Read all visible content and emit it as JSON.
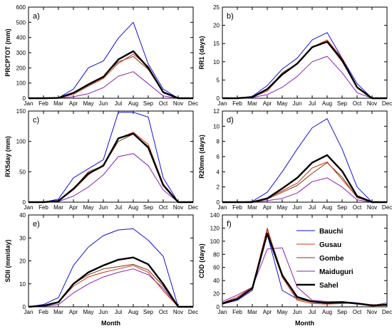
{
  "chart_data": [
    {
      "type": "line",
      "panel_label": "a)",
      "ylabel": "PRCPTOT (mm)",
      "xlabel": "",
      "ylim": [
        0,
        600
      ],
      "yticks": [
        0,
        100,
        200,
        300,
        400,
        500,
        600
      ],
      "x": [
        "Jan",
        "Feb",
        "Mar",
        "Apr",
        "May",
        "Jun",
        "Jul",
        "Aug",
        "Sep",
        "Oct",
        "Nov",
        "Dec"
      ],
      "series": [
        {
          "name": "Bauchi",
          "values": [
            0,
            0,
            3,
            60,
            200,
            245,
            395,
            500,
            225,
            60,
            0,
            0
          ]
        },
        {
          "name": "Gusau",
          "values": [
            0,
            0,
            2,
            25,
            80,
            130,
            230,
            290,
            210,
            35,
            0,
            0
          ]
        },
        {
          "name": "Gombe",
          "values": [
            0,
            0,
            2,
            35,
            95,
            145,
            240,
            275,
            190,
            40,
            0,
            0
          ]
        },
        {
          "name": "Maiduguri",
          "values": [
            0,
            0,
            1,
            10,
            30,
            70,
            145,
            175,
            95,
            15,
            0,
            0
          ]
        },
        {
          "name": "Sahel",
          "values": [
            0,
            0,
            2,
            35,
            90,
            140,
            255,
            310,
            200,
            40,
            0,
            0
          ]
        }
      ]
    },
    {
      "type": "line",
      "panel_label": "b)",
      "ylabel": "RR1 (days)",
      "xlabel": "",
      "ylim": [
        0,
        25
      ],
      "yticks": [
        0,
        5,
        10,
        15,
        20,
        25
      ],
      "x": [
        "Jan",
        "Feb",
        "Mar",
        "Apr",
        "May",
        "Jun",
        "Jul",
        "Aug",
        "Sep",
        "Oct",
        "Nov",
        "Dec"
      ],
      "series": [
        {
          "name": "Bauchi",
          "values": [
            0,
            0,
            0.5,
            3.5,
            8,
            11,
            16,
            18,
            11,
            4,
            0,
            0
          ]
        },
        {
          "name": "Gusau",
          "values": [
            0,
            0,
            0.3,
            2,
            6.5,
            9.5,
            14,
            16,
            11,
            3,
            0,
            0
          ]
        },
        {
          "name": "Gombe",
          "values": [
            0,
            0,
            0.3,
            2.3,
            7,
            9.5,
            14,
            15.5,
            10,
            3,
            0,
            0
          ]
        },
        {
          "name": "Maiduguri",
          "values": [
            0,
            0,
            0.2,
            1,
            3,
            6,
            10,
            11.5,
            7,
            1.5,
            0,
            0
          ]
        },
        {
          "name": "Sahel",
          "values": [
            0,
            0,
            0.3,
            2.5,
            6.5,
            9.5,
            14,
            15.5,
            10.5,
            3,
            0,
            0
          ]
        }
      ]
    },
    {
      "type": "line",
      "panel_label": "c)",
      "ylabel": "RX5day (mm)",
      "xlabel": "",
      "ylim": [
        0,
        150
      ],
      "yticks": [
        0,
        50,
        100,
        150
      ],
      "x": [
        "Jan",
        "Feb",
        "Mar",
        "Apr",
        "May",
        "Jun",
        "Jul",
        "Aug",
        "Sep",
        "Oct",
        "Nov",
        "Dec"
      ],
      "series": [
        {
          "name": "Bauchi",
          "values": [
            0,
            0,
            5,
            40,
            55,
            70,
            148,
            148,
            140,
            40,
            0,
            0
          ]
        },
        {
          "name": "Gusau",
          "values": [
            0,
            0,
            2,
            20,
            45,
            62,
            105,
            115,
            95,
            30,
            0,
            0
          ]
        },
        {
          "name": "Gombe",
          "values": [
            0,
            0,
            2,
            22,
            50,
            60,
            100,
            112,
            92,
            30,
            0,
            0
          ]
        },
        {
          "name": "Maiduguri",
          "values": [
            0,
            0,
            1,
            10,
            25,
            45,
            75,
            80,
            60,
            20,
            0,
            0
          ]
        },
        {
          "name": "Sahel",
          "values": [
            0,
            0,
            2,
            22,
            47,
            60,
            105,
            113,
            90,
            28,
            0,
            0
          ]
        }
      ]
    },
    {
      "type": "line",
      "panel_label": "d)",
      "ylabel": "R20mm (days)",
      "xlabel": "",
      "ylim": [
        0,
        12
      ],
      "yticks": [
        0,
        2,
        4,
        6,
        8,
        10,
        12
      ],
      "x": [
        "Jan",
        "Feb",
        "Mar",
        "Apr",
        "May",
        "Jun",
        "Jul",
        "Aug",
        "Sep",
        "Oct",
        "Nov",
        "Dec"
      ],
      "series": [
        {
          "name": "Bauchi",
          "values": [
            0,
            0,
            0.1,
            1.3,
            4,
            7,
            9.8,
            11,
            7,
            2,
            0,
            0
          ]
        },
        {
          "name": "Gusau",
          "values": [
            0,
            0,
            0,
            0.5,
            1.5,
            2.5,
            4.5,
            5.3,
            3,
            0.7,
            0,
            0
          ]
        },
        {
          "name": "Gombe",
          "values": [
            0,
            0,
            0,
            0.4,
            1.3,
            2.2,
            3.8,
            5.2,
            3.3,
            0.6,
            0,
            0
          ]
        },
        {
          "name": "Maiduguri",
          "values": [
            0,
            0,
            0,
            0.2,
            0.5,
            1.2,
            2.7,
            3.2,
            2,
            0.3,
            0,
            0
          ]
        },
        {
          "name": "Sahel",
          "values": [
            0,
            0,
            0,
            0.5,
            1.8,
            3.2,
            5.2,
            6.2,
            4.1,
            0.8,
            0,
            0
          ]
        }
      ]
    },
    {
      "type": "line",
      "panel_label": "e)",
      "ylabel": "SDII (mm/day)",
      "xlabel": "Month",
      "ylim": [
        0,
        40
      ],
      "yticks": [
        0,
        10,
        20,
        30,
        40
      ],
      "x": [
        "Jan",
        "Feb",
        "Mar",
        "Apr",
        "May",
        "Jun",
        "Jul",
        "Aug",
        "Sep",
        "Oct",
        "Nov",
        "Dec"
      ],
      "series": [
        {
          "name": "Bauchi",
          "values": [
            0,
            1,
            4,
            18,
            26,
            31,
            33.5,
            34,
            29,
            22,
            0,
            0
          ]
        },
        {
          "name": "Gusau",
          "values": [
            0,
            0.5,
            2,
            9,
            13,
            15,
            16.5,
            18,
            15,
            7,
            0,
            0
          ]
        },
        {
          "name": "Gombe",
          "values": [
            0,
            0.5,
            2,
            10,
            14,
            16.5,
            17.5,
            18.5,
            16,
            9,
            0,
            0
          ]
        },
        {
          "name": "Maiduguri",
          "values": [
            0,
            0.2,
            1,
            6,
            10,
            13,
            15,
            16.5,
            14,
            8,
            0,
            0
          ]
        },
        {
          "name": "Sahel",
          "values": [
            0,
            0.5,
            2,
            10,
            15,
            18,
            20.5,
            21.5,
            18.5,
            10,
            0,
            0
          ]
        }
      ]
    },
    {
      "type": "line",
      "panel_label": "f)",
      "ylabel": "CDD (days)",
      "xlabel": "Month",
      "ylim": [
        0,
        140
      ],
      "yticks": [
        0,
        20,
        40,
        60,
        80,
        100,
        120,
        140
      ],
      "x": [
        "Jan",
        "Feb",
        "Mar",
        "Apr",
        "May",
        "Jun",
        "Jul",
        "Aug",
        "Sep",
        "Oct",
        "Nov",
        "Dec"
      ],
      "series": [
        {
          "name": "Bauchi",
          "values": [
            4,
            10,
            25,
            110,
            25,
            12,
            8,
            6,
            8,
            6,
            3,
            2
          ]
        },
        {
          "name": "Gusau",
          "values": [
            6,
            15,
            30,
            120,
            45,
            10,
            5,
            4,
            5,
            6,
            3,
            4
          ]
        },
        {
          "name": "Gombe",
          "values": [
            5,
            12,
            28,
            118,
            50,
            12,
            7,
            5,
            6,
            5,
            3,
            3
          ]
        },
        {
          "name": "Maiduguri",
          "values": [
            8,
            18,
            30,
            88,
            90,
            30,
            10,
            8,
            8,
            5,
            2,
            6
          ]
        },
        {
          "name": "Sahel",
          "values": [
            5,
            12,
            28,
            112,
            48,
            15,
            8,
            6,
            7,
            5,
            2,
            3
          ]
        }
      ],
      "legend": {
        "placement": "right",
        "entries": [
          "Bauchi",
          "Gusau",
          "Gombe",
          "Maiduguri",
          "Sahel"
        ]
      }
    }
  ],
  "colors": {
    "Bauchi": "#1010e0",
    "Gusau": "#d03010",
    "Gombe": "#7a3a10",
    "Maiduguri": "#8a20b0",
    "Sahel": "#000000"
  }
}
